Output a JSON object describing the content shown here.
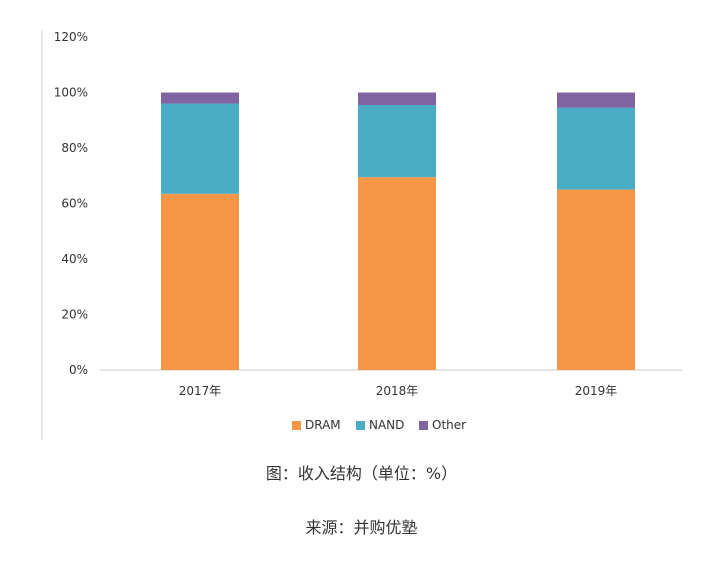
{
  "chart_data": {
    "type": "bar",
    "stacked": true,
    "categories": [
      "2017年",
      "2018年",
      "2019年"
    ],
    "series": [
      {
        "name": "DRAM",
        "values": [
          63.5,
          69.5,
          65
        ],
        "color": "#F79646"
      },
      {
        "name": "NAND",
        "values": [
          32.5,
          26,
          29.5
        ],
        "color": "#4BACC6"
      },
      {
        "name": "Other",
        "values": [
          4,
          4.5,
          5.5
        ],
        "color": "#8064A2"
      }
    ],
    "y_ticks": [
      "0%",
      "20%",
      "40%",
      "60%",
      "80%",
      "100%",
      "120%"
    ],
    "ylim": [
      0,
      120
    ],
    "legend_position": "bottom"
  },
  "caption": "图：收入结构（单位：%）",
  "source": "来源：并购优塾"
}
